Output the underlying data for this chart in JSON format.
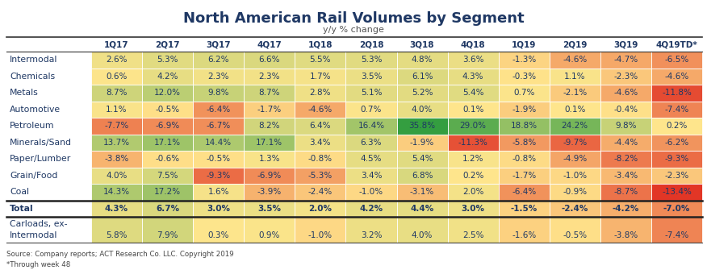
{
  "title": "North American Rail Volumes by Segment",
  "subtitle": "y/y % change",
  "columns": [
    "1Q17",
    "2Q17",
    "3Q17",
    "4Q17",
    "1Q18",
    "2Q18",
    "3Q18",
    "4Q18",
    "1Q19",
    "2Q19",
    "3Q19",
    "4Q19TD*"
  ],
  "rows": [
    "Intermodal",
    "Chemicals",
    "Metals",
    "Automotive",
    "Petroleum",
    "Minerals/Sand",
    "Paper/Lumber",
    "Grain/Food",
    "Coal",
    "Total",
    "Carloads, ex-\nIntermodal"
  ],
  "values": [
    [
      2.6,
      5.3,
      6.2,
      6.6,
      5.5,
      5.3,
      4.8,
      3.6,
      -1.3,
      -4.6,
      -4.7,
      -6.5
    ],
    [
      0.6,
      4.2,
      2.3,
      2.3,
      1.7,
      3.5,
      6.1,
      4.3,
      -0.3,
      1.1,
      -2.3,
      -4.6
    ],
    [
      8.7,
      12.0,
      9.8,
      8.7,
      2.8,
      5.1,
      5.2,
      5.4,
      0.7,
      -2.1,
      -4.6,
      -11.8
    ],
    [
      1.1,
      -0.5,
      -6.4,
      -1.7,
      -4.6,
      0.7,
      4.0,
      0.1,
      -1.9,
      0.1,
      -0.4,
      -7.4
    ],
    [
      -7.7,
      -6.9,
      -6.7,
      8.2,
      6.4,
      16.4,
      35.8,
      29.0,
      18.8,
      24.2,
      9.8,
      0.2
    ],
    [
      13.7,
      17.1,
      14.4,
      17.1,
      3.4,
      6.3,
      -1.9,
      -11.3,
      -5.8,
      -9.7,
      -4.4,
      -6.2
    ],
    [
      -3.8,
      -0.6,
      -0.5,
      1.3,
      -0.8,
      4.5,
      5.4,
      1.2,
      -0.8,
      -4.9,
      -8.2,
      -9.3
    ],
    [
      4.0,
      7.5,
      -9.3,
      -6.9,
      -5.3,
      3.4,
      6.8,
      0.2,
      -1.7,
      -1.0,
      -3.4,
      -2.3
    ],
    [
      14.3,
      17.2,
      1.6,
      -3.9,
      -2.4,
      -1.0,
      -3.1,
      2.0,
      -6.4,
      -0.9,
      -8.7,
      -13.4
    ],
    [
      4.3,
      6.7,
      3.0,
      3.5,
      2.0,
      4.2,
      4.4,
      3.0,
      -1.5,
      -2.4,
      -4.2,
      -7.0
    ],
    [
      5.8,
      7.9,
      0.3,
      0.9,
      -1.0,
      3.2,
      4.0,
      2.5,
      -1.6,
      -0.5,
      -3.8,
      -7.4
    ]
  ],
  "text_values": [
    [
      "2.6%",
      "5.3%",
      "6.2%",
      "6.6%",
      "5.5%",
      "5.3%",
      "4.8%",
      "3.6%",
      "-1.3%",
      "-4.6%",
      "-4.7%",
      "-6.5%"
    ],
    [
      "0.6%",
      "4.2%",
      "2.3%",
      "2.3%",
      "1.7%",
      "3.5%",
      "6.1%",
      "4.3%",
      "-0.3%",
      "1.1%",
      "-2.3%",
      "-4.6%"
    ],
    [
      "8.7%",
      "12.0%",
      "9.8%",
      "8.7%",
      "2.8%",
      "5.1%",
      "5.2%",
      "5.4%",
      "0.7%",
      "-2.1%",
      "-4.6%",
      "-11.8%"
    ],
    [
      "1.1%",
      "-0.5%",
      "-6.4%",
      "-1.7%",
      "-4.6%",
      "0.7%",
      "4.0%",
      "0.1%",
      "-1.9%",
      "0.1%",
      "-0.4%",
      "-7.4%"
    ],
    [
      "-7.7%",
      "-6.9%",
      "-6.7%",
      "8.2%",
      "6.4%",
      "16.4%",
      "35.8%",
      "29.0%",
      "18.8%",
      "24.2%",
      "9.8%",
      "0.2%"
    ],
    [
      "13.7%",
      "17.1%",
      "14.4%",
      "17.1%",
      "3.4%",
      "6.3%",
      "-1.9%",
      "-11.3%",
      "-5.8%",
      "-9.7%",
      "-4.4%",
      "-6.2%"
    ],
    [
      "-3.8%",
      "-0.6%",
      "-0.5%",
      "1.3%",
      "-0.8%",
      "4.5%",
      "5.4%",
      "1.2%",
      "-0.8%",
      "-4.9%",
      "-8.2%",
      "-9.3%"
    ],
    [
      "4.0%",
      "7.5%",
      "-9.3%",
      "-6.9%",
      "-5.3%",
      "3.4%",
      "6.8%",
      "0.2%",
      "-1.7%",
      "-1.0%",
      "-3.4%",
      "-2.3%"
    ],
    [
      "14.3%",
      "17.2%",
      "1.6%",
      "-3.9%",
      "-2.4%",
      "-1.0%",
      "-3.1%",
      "2.0%",
      "-6.4%",
      "-0.9%",
      "-8.7%",
      "-13.4%"
    ],
    [
      "4.3%",
      "6.7%",
      "3.0%",
      "3.5%",
      "2.0%",
      "4.2%",
      "4.4%",
      "3.0%",
      "-1.5%",
      "-2.4%",
      "-4.2%",
      "-7.0%"
    ],
    [
      "5.8%",
      "7.9%",
      "0.3%",
      "0.9%",
      "-1.0%",
      "3.2%",
      "4.0%",
      "2.5%",
      "-1.6%",
      "-0.5%",
      "-3.8%",
      "-7.4%"
    ]
  ],
  "source_text": "Source: Company reports; ACT Research Co. LLC. Copyright 2019",
  "footnote": "*Through week 48",
  "total_row_index": 9,
  "carloads_row_index": 10,
  "background_color": "#ffffff",
  "title_color": "#1F3864",
  "subtitle_color": "#555555",
  "label_color": "#1F3864",
  "header_color": "#1F3864",
  "cell_text_color": "#1F3864"
}
